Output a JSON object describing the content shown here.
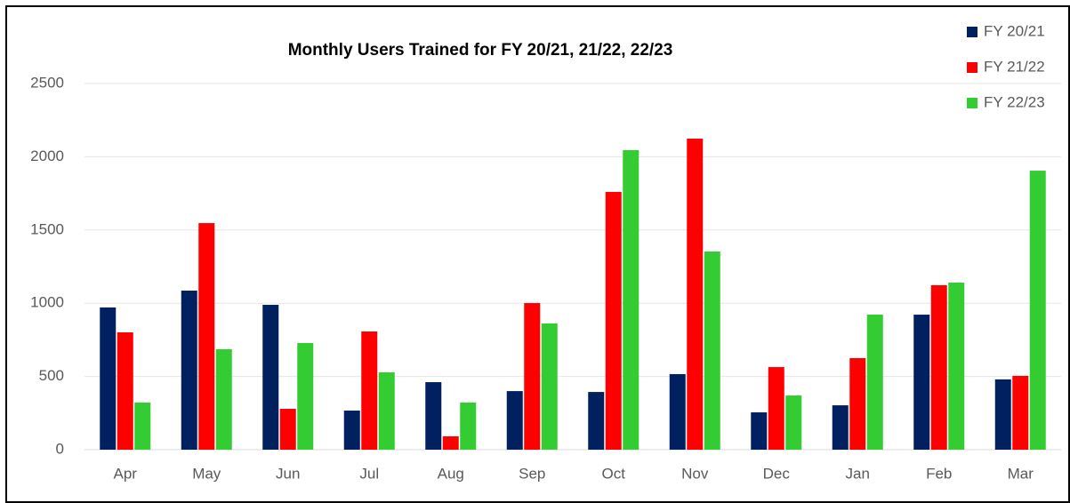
{
  "chart_data": {
    "type": "bar",
    "title": "Monthly Users Trained for FY 20/21, 21/22, 22/23",
    "categories": [
      "Apr",
      "May",
      "Jun",
      "Jul",
      "Aug",
      "Sep",
      "Oct",
      "Nov",
      "Dec",
      "Jan",
      "Feb",
      "Mar"
    ],
    "series": [
      {
        "name": "FY 20/21",
        "color": "#002060",
        "values": [
          971,
          1086,
          989,
          267,
          461,
          400,
          394,
          516,
          255,
          303,
          922,
          480
        ]
      },
      {
        "name": "FY 21/22",
        "color": "#ff0000",
        "values": [
          801,
          1547,
          279,
          807,
          91,
          1001,
          1760,
          2124,
          564,
          625,
          1123,
          504
        ]
      },
      {
        "name": "FY 22/23",
        "color": "#33cc33",
        "values": [
          322,
          686,
          728,
          528,
          322,
          862,
          2045,
          1353,
          370,
          922,
          1141,
          1905
        ]
      }
    ],
    "ylim": [
      0,
      2500
    ],
    "yticks": [
      0,
      500,
      1000,
      1500,
      2000,
      2500
    ],
    "grid": true,
    "legend": "top-right"
  }
}
